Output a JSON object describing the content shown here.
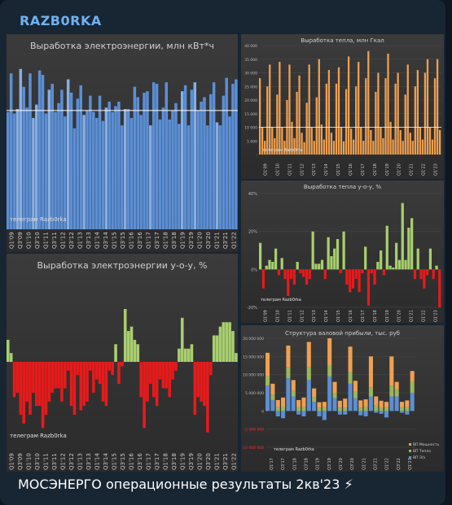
{
  "channel": {
    "name": "RAZB0RKA"
  },
  "post": {
    "caption": "МОСЭНЕРГО операционные результаты 2кв'23 ⚡"
  },
  "colors": {
    "accent": "#6fb3f2",
    "blue": "#5b8fd6",
    "blue_light": "#86aee6",
    "orange": "#f0a050",
    "green": "#a8cf6e",
    "red": "#e81a1a",
    "navy": "#1f3a6a",
    "olive": "#9bb65a"
  },
  "chart_data": [
    {
      "type": "bar",
      "title": "Выработка электроэнергии, млн кВт*ч",
      "watermark": "телеграм Razb0rka",
      "ylim": [
        0,
        11500
      ],
      "reference_line": 8000,
      "x_tick_labels": [
        "Q1'09",
        "Q3'09",
        "Q1'10",
        "Q3'10",
        "Q1'11",
        "Q3'11",
        "Q1'12",
        "Q3'12",
        "Q1'13",
        "Q3'13",
        "Q1'14",
        "Q3'14",
        "Q1'15",
        "Q3'15",
        "Q1'16",
        "Q3'16",
        "Q1'17",
        "Q3'17",
        "Q1'18",
        "Q3'18",
        "Q1'19",
        "Q3'19",
        "Q1'20",
        "Q3'20",
        "Q1'21",
        "Q3'21",
        "Q1'22"
      ],
      "values": [
        7900,
        10500,
        7800,
        8100,
        10800,
        9600,
        8200,
        10500,
        7500,
        8400,
        10700,
        10400,
        7800,
        9400,
        9800,
        7900,
        8500,
        9400,
        7600,
        10100,
        9200,
        6800,
        8800,
        9700,
        7700,
        8000,
        9000,
        7900,
        7500,
        9000,
        7300,
        8200,
        8600,
        7900,
        8300,
        8600,
        7000,
        8100,
        8100,
        7500,
        9600,
        8900,
        7700,
        9200,
        9300,
        7000,
        9900,
        9800,
        7400,
        8200,
        9900,
        7400,
        8000,
        8500,
        7100,
        9300,
        9700,
        7000,
        9400,
        9900,
        8000,
        8600,
        8900,
        7000,
        9100,
        9900,
        7200,
        7000,
        9000,
        10200,
        7600,
        9800,
        10100
      ],
      "light_bars": [
        3,
        4,
        8,
        9,
        13,
        19,
        24,
        31,
        37,
        45,
        55,
        59,
        66
      ]
    },
    {
      "type": "bar",
      "title": "Выработка электроэнергии у-о-у, %",
      "watermark": "телеграм Razb0rka",
      "ylim": [
        -0.19,
        0.19
      ],
      "x_tick_labels": [
        "Q1'09",
        "Q3'09",
        "Q1'10",
        "Q3'10",
        "Q1'11",
        "Q3'11",
        "Q1'12",
        "Q3'12",
        "Q1'13",
        "Q3'13",
        "Q1'14",
        "Q3'14",
        "Q1'15",
        "Q3'15",
        "Q1'16",
        "Q3'16",
        "Q1'17",
        "Q3'17",
        "Q1'18",
        "Q3'18",
        "Q1'19",
        "Q3'19",
        "Q1'20",
        "Q3'20",
        "Q1'21",
        "Q3'21",
        "Q1'22"
      ],
      "values": [
        0.05,
        0.02,
        -0.08,
        -0.07,
        -0.12,
        -0.14,
        -0.09,
        -0.12,
        -0.07,
        -0.1,
        -0.1,
        -0.15,
        -0.12,
        -0.09,
        -0.07,
        -0.06,
        -0.06,
        -0.09,
        -0.06,
        -0.02,
        -0.1,
        -0.12,
        -0.03,
        -0.11,
        -0.1,
        -0.09,
        -0.02,
        -0.07,
        -0.04,
        -0.05,
        -0.09,
        -0.1,
        -0.02,
        -0.03,
        0.04,
        -0.05,
        -0.01,
        0.12,
        0.07,
        0.08,
        0.05,
        0.04,
        -0.08,
        -0.15,
        -0.09,
        -0.05,
        -0.08,
        -0.1,
        -0.04,
        -0.06,
        -0.06,
        -0.08,
        -0.04,
        -0.02,
        0.03,
        0.1,
        0.03,
        0.03,
        0.04,
        -0.12,
        -0.08,
        -0.09,
        -0.1,
        -0.16,
        -0.03,
        0.06,
        0.06,
        0.08,
        0.09,
        0.09,
        0.09,
        0.07,
        0.02
      ]
    },
    {
      "type": "bar",
      "title": "Выработка тепла, млн Гкал",
      "watermark": "телеграм Razb0rka",
      "yticks": [
        "40 000",
        "35 000",
        "30 000",
        "25 000",
        "20 000",
        "15 000",
        "10 000",
        "5 000",
        "-"
      ],
      "ylim": [
        0,
        40000
      ],
      "reference_line": 10000,
      "x_tick_labels": [
        "Q1'09",
        "Q1'10",
        "Q1'11",
        "Q1'12",
        "Q1'13",
        "Q1'14",
        "Q1'15",
        "Q1'16",
        "Q1'17",
        "Q1'18",
        "Q1'19",
        "Q1'20",
        "Q1'21",
        "Q1'22",
        "Q1'23"
      ],
      "values": [
        28000,
        10000,
        5000,
        25000,
        33000,
        10000,
        6000,
        22000,
        34000,
        10000,
        5000,
        20000,
        33000,
        12000,
        6000,
        23000,
        29000,
        8000,
        4500,
        19000,
        33000,
        10000,
        5000,
        21000,
        35000,
        11000,
        5500,
        26000,
        31000,
        8000,
        5000,
        26000,
        32000,
        10000,
        4800,
        24000,
        36000,
        9500,
        5500,
        25000,
        34000,
        10000,
        5000,
        28000,
        38000,
        9000,
        5000,
        23000,
        30000,
        10000,
        6000,
        28000,
        37000,
        12000,
        5500,
        26000,
        30000,
        9000,
        5000,
        22000,
        33000,
        8000,
        5000,
        25000,
        31000,
        10000,
        5500,
        30000,
        35000,
        10000,
        5500,
        28000,
        35000,
        9000
      ]
    },
    {
      "type": "bar",
      "title": "Выработка тепла у-о-у, %",
      "watermark": "телеграм Razb0rka",
      "yticks": [
        "40%",
        "20%",
        "0%",
        "-20%"
      ],
      "ylim": [
        -0.2,
        0.4
      ],
      "x_tick_labels": [
        "Q1'09",
        "Q1'10",
        "Q1'11",
        "Q1'12",
        "Q1'13",
        "Q1'14",
        "Q1'15",
        "Q1'16",
        "Q1'17",
        "Q1'18",
        "Q1'19",
        "Q1'20",
        "Q1'21",
        "Q1'22",
        "Q1'23"
      ],
      "values": [
        0.14,
        -0.1,
        0.02,
        0.05,
        0.04,
        0.11,
        -0.03,
        0.06,
        -0.05,
        -0.14,
        -0.05,
        -0.08,
        0.04,
        -0.02,
        -0.04,
        -0.08,
        -0.05,
        0.2,
        0.03,
        0.03,
        0.05,
        -0.05,
        0.17,
        0.07,
        0.11,
        0.16,
        -0.02,
        0.2,
        -0.08,
        -0.12,
        -0.1,
        -0.05,
        -0.12,
        -0.02,
        0.12,
        -0.19,
        -0.02,
        -0.08,
        0.04,
        0.1,
        -0.03,
        0.23,
        0.02,
        0.01,
        0.14,
        0.05,
        0.35,
        0.05,
        0.22,
        0.27,
        -0.05,
        0.11,
        -0.05,
        -0.1,
        -0.03,
        0.11,
        -0.05,
        0.02,
        -0.2
      ],
      "bottom_labels": [
        "Q1'09",
        "Q1'10",
        "Q1'11",
        "Q1'12",
        "Q1'13",
        "Q1'14",
        "Q1'15",
        "Q1'16",
        "Q1'17",
        "Q1'18",
        "Q1'19",
        "Q1'20",
        "Q1'21",
        "Q1'22",
        "Q1'23"
      ]
    },
    {
      "type": "bar",
      "title": "Структура валовой прибыли, тыс. руб",
      "watermark": "телеграм Razb0rka",
      "yticks": [
        "20 000 000",
        "15 000 000",
        "10 000 000",
        "5 000 000",
        "0",
        "-5 000 000",
        "-10 000 000"
      ],
      "ylim": [
        -10000000,
        20000000
      ],
      "legend": [
        "ВП Мощность",
        "ВП Тепло",
        "ВП Э/э"
      ],
      "legend_position": "bottom-right",
      "x_tick_labels": [
        "Q1'17",
        "Q3'17",
        "Q1'18",
        "Q3'18",
        "Q1'19",
        "Q3'19",
        "Q1'20",
        "Q3'20",
        "Q1'21",
        "Q3'21",
        "Q1'22",
        "Q3'22",
        "Q1'23"
      ],
      "series": [
        {
          "name": "ВП Э/э",
          "values": [
            7000000,
            3000000,
            -1500000,
            -2000000,
            9000000,
            4000000,
            -1000000,
            -1500000,
            8500000,
            2500000,
            -1500000,
            -2500000,
            9500000,
            3500000,
            -1000000,
            -1000000,
            7500000,
            3500000,
            -1200000,
            -1500000,
            4000000,
            -500000,
            -800000,
            -1800000,
            4000000,
            4000000,
            -500000,
            -1000000,
            5000000
          ]
        },
        {
          "name": "ВП Тепло",
          "values": [
            2500000,
            1500000,
            1000000,
            1200000,
            3000000,
            1500000,
            1000000,
            1200000,
            3500000,
            1200000,
            900000,
            1000000,
            3000000,
            1500000,
            800000,
            900000,
            3200000,
            1800000,
            900000,
            1200000,
            2500000,
            1500000,
            800000,
            1000000,
            3000000,
            2000000,
            1000000,
            1100000,
            3000000
          ]
        },
        {
          "name": "ВП Мощность",
          "values": [
            6500000,
            3000000,
            2000000,
            2500000,
            6000000,
            3000000,
            2000000,
            2500000,
            7000000,
            2500000,
            1500000,
            1500000,
            7500000,
            3000000,
            2000000,
            2500000,
            7000000,
            3000000,
            2000000,
            2000000,
            8500000,
            2500000,
            2000000,
            1500000,
            8000000,
            2000000,
            1500000,
            1800000,
            3000000
          ]
        }
      ]
    }
  ]
}
